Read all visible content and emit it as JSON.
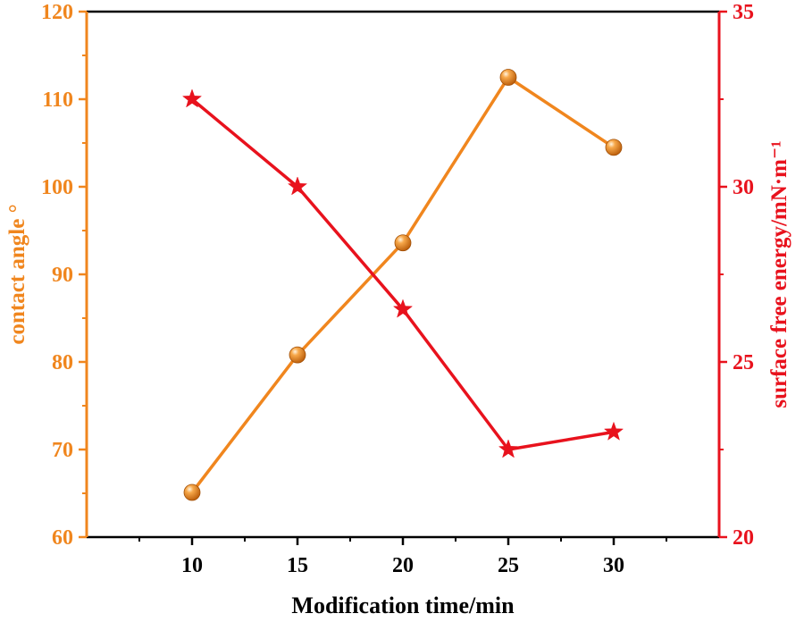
{
  "chart_data": {
    "type": "line",
    "xlabel": "Modification time/min",
    "x": [
      10,
      15,
      20,
      25,
      30
    ],
    "xlim": [
      5,
      35
    ],
    "x_ticks": [
      "10",
      "15",
      "20",
      "25",
      "30"
    ],
    "series": [
      {
        "name": "contact angle",
        "axis": "left",
        "color": "#f0861e",
        "marker": "sphere",
        "values": [
          65.1,
          80.8,
          93.6,
          112.5,
          104.5
        ]
      },
      {
        "name": "surface free energy",
        "axis": "right",
        "color": "#e8121d",
        "marker": "star",
        "values": [
          32.5,
          30.0,
          26.5,
          22.5,
          23.0
        ]
      }
    ],
    "left_axis": {
      "label": "contact angle °",
      "ylim": [
        60,
        120
      ],
      "ticks": [
        "60",
        "70",
        "80",
        "90",
        "100",
        "110",
        "120"
      ],
      "color": "#f0861e"
    },
    "right_axis": {
      "label": "surface free energy/mN·m⁻¹",
      "ylim": [
        20,
        35
      ],
      "ticks": [
        "20",
        "25",
        "30",
        "35"
      ],
      "color": "#e8121d"
    },
    "grid": false
  }
}
